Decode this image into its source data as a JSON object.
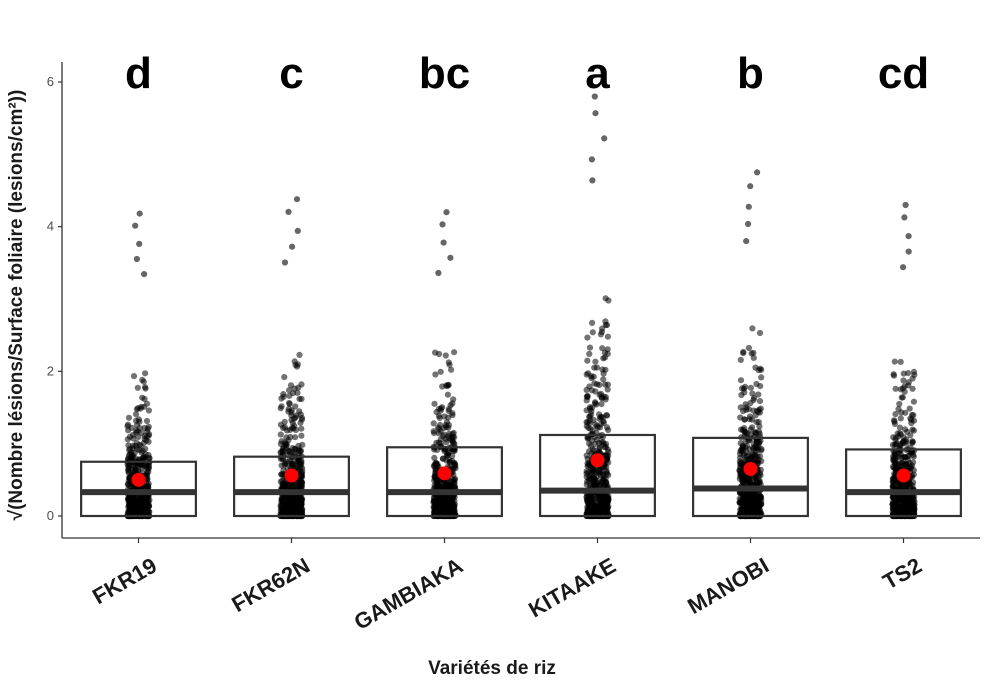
{
  "chart_data": {
    "type": "box",
    "title": "",
    "xlabel": "Variétés de riz",
    "ylabel": "√(Nombre lésions/Surface foliaire (lesions/cm²))",
    "ylim": [
      0,
      6
    ],
    "yticks": [
      0,
      2,
      4,
      6
    ],
    "grid": false,
    "categories": [
      "FKR19",
      "FKR62N",
      "GAMBIAKA",
      "KITAAKE",
      "MANOBI",
      "TS2"
    ],
    "significance_letters": [
      "d",
      "c",
      "bc",
      "a",
      "b",
      "cd"
    ],
    "box_stats": [
      {
        "q1": 0.0,
        "median": 0.33,
        "q3": 0.75,
        "mean": 0.5,
        "max_point": 4.18
      },
      {
        "q1": 0.0,
        "median": 0.33,
        "q3": 0.82,
        "mean": 0.56,
        "max_point": 4.38
      },
      {
        "q1": 0.0,
        "median": 0.33,
        "q3": 0.95,
        "mean": 0.59,
        "max_point": 4.2
      },
      {
        "q1": 0.0,
        "median": 0.35,
        "q3": 1.12,
        "mean": 0.77,
        "max_point": 5.8
      },
      {
        "q1": 0.0,
        "median": 0.38,
        "q3": 1.08,
        "mean": 0.65,
        "max_point": 4.75
      },
      {
        "q1": 0.0,
        "median": 0.33,
        "q3": 0.92,
        "mean": 0.56,
        "max_point": 4.3
      }
    ],
    "colors": {
      "points": "#000000",
      "mean_marker": "#ff0000",
      "box_stroke": "#333333",
      "axis": "#333333"
    }
  }
}
